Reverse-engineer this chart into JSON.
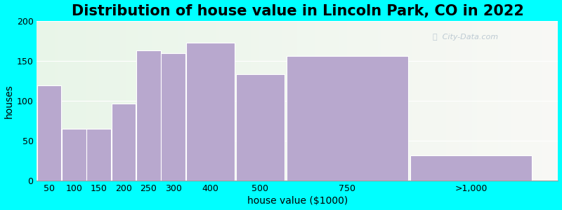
{
  "title": "Distribution of house value in Lincoln Park, CO in 2022",
  "xlabel": "house value ($1000)",
  "ylabel": "houses",
  "background_outer": "#00FFFF",
  "background_inner": "#e8f5e8",
  "bar_color": "#b8a8ce",
  "categories": [
    "50",
    "100",
    "150",
    "200",
    "250",
    "300",
    "400",
    "500",
    "750",
    ">1,000"
  ],
  "values": [
    119,
    65,
    65,
    97,
    163,
    160,
    173,
    133,
    156,
    32
  ],
  "ylim": [
    0,
    200
  ],
  "yticks": [
    0,
    50,
    100,
    150,
    200
  ],
  "title_fontsize": 15,
  "axis_label_fontsize": 10,
  "tick_fontsize": 9,
  "bar_edges": [
    0,
    50,
    100,
    150,
    200,
    250,
    300,
    400,
    500,
    750,
    1000
  ],
  "xmax": 1050
}
